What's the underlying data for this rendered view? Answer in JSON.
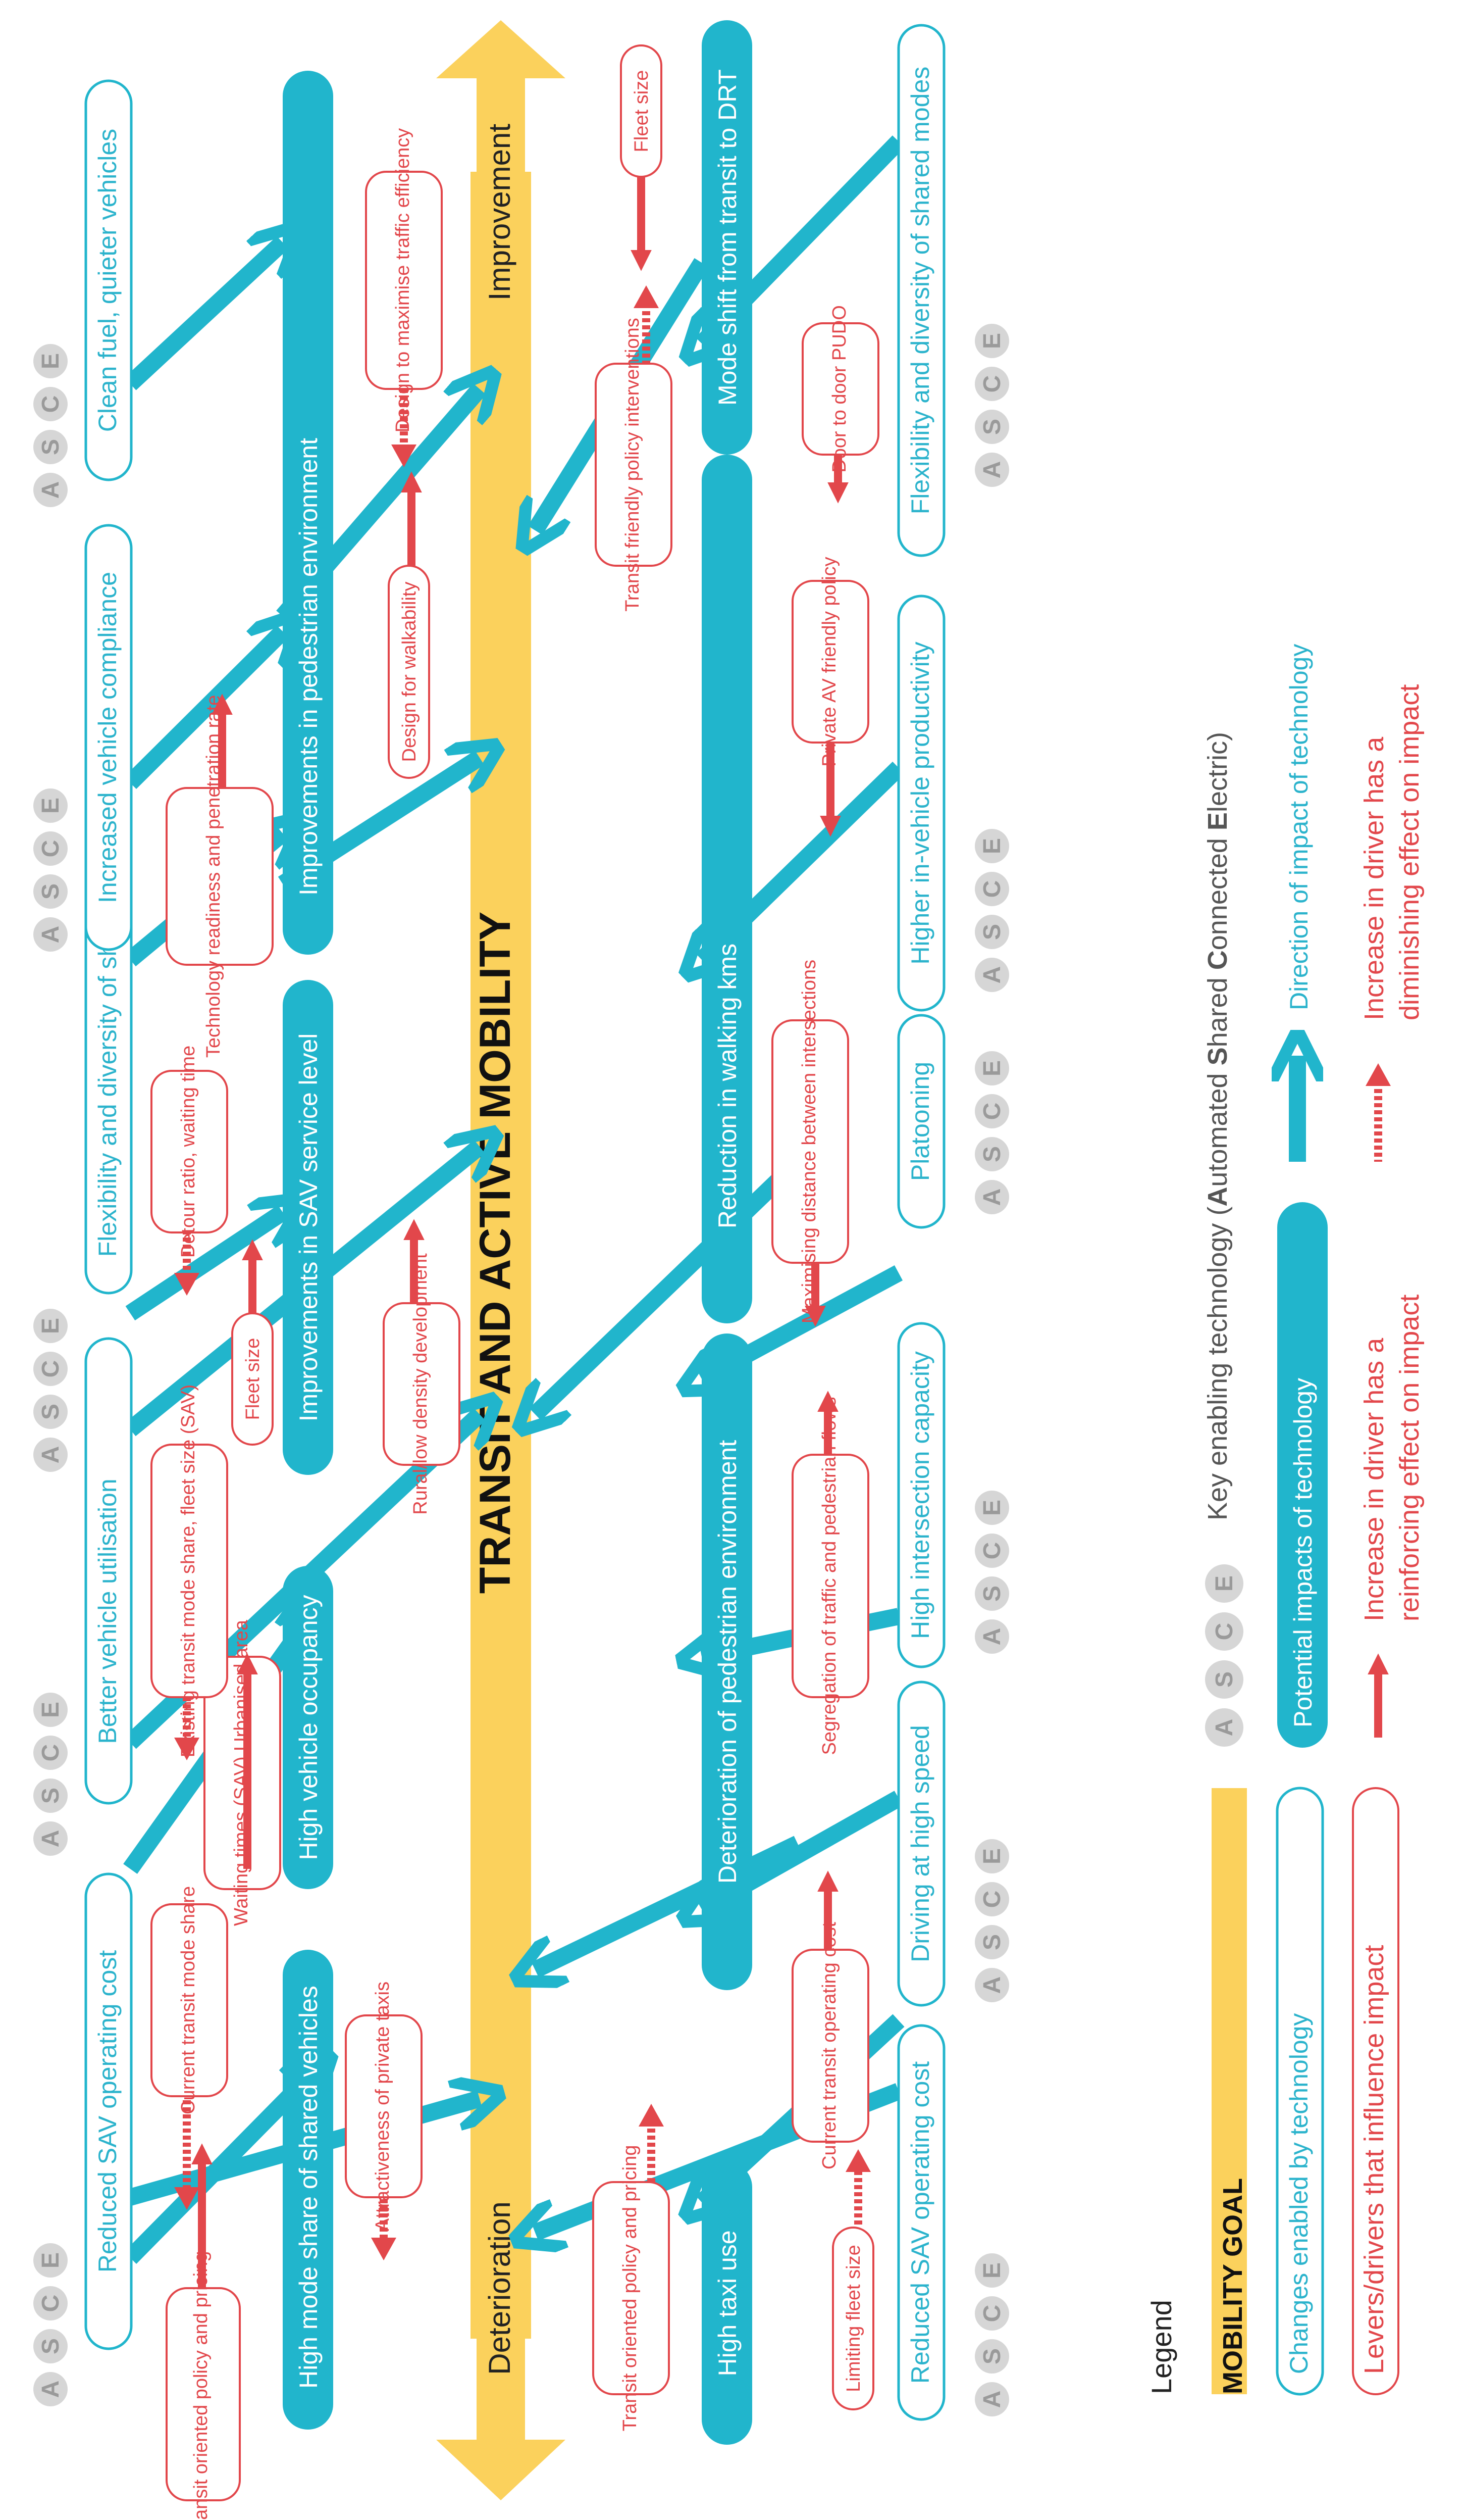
{
  "colors": {
    "teal": "#21b5cc",
    "red": "#e2474b",
    "yellow": "#fbd15c",
    "grey": "#c9c9c9",
    "grey_text": "#9a9a9a"
  },
  "goal": {
    "title": "TRANSIT AND ACTIVE MOBILITY",
    "improvement": "Improvement",
    "deterioration": "Deterioration"
  },
  "tech_letters": [
    "A",
    "S",
    "C",
    "E"
  ],
  "top": {
    "changes": [
      "Reduced SAV operating cost",
      "Better vehicle utilisation",
      "Flexibility and diversity of shared modes",
      "Increased vehicle compliance",
      "Clean fuel, quieter vehicles"
    ],
    "impacts": [
      "High mode share of shared vehicles",
      "High vehicle occupancy",
      "Improvements in SAV service level",
      "Improvements in pedestrian environment"
    ],
    "levers": [
      "Transit oriented policy and pricing",
      "Current transit mode share",
      "Attractiveness of private taxis",
      "Waiting times (SAV) Urbanised area",
      "Existing transit mode share, fleet size (SAV)",
      "Fleet size",
      "Detour ratio, waiting time",
      "Rural/low density development",
      "Technology readiness and penetration rate",
      "Design for walkability",
      "Design to maximise traffic efficiency"
    ]
  },
  "bottom": {
    "changes": [
      "Reduced SAV operating cost",
      "Driving at high speed",
      "High intersection capacity",
      "Platooning",
      "Higher in-vehicle productivity",
      "Flexibility and diversity of shared modes"
    ],
    "impacts": [
      "High taxi use",
      "Deterioration of pedestrian environment",
      "Reduction in walking kms",
      "Mode shift from transit to DRT"
    ],
    "levers": [
      "Transit oriented policy and pricing",
      "Limiting fleet size",
      "Current transit operating cost",
      "Segregation of traffic and pedestrian flows",
      "Maximising distance between intersections",
      "Private AV friendly policy",
      "Door to door PUDO",
      "Transit friendly policy interventions",
      "Fleet size"
    ]
  },
  "legend": {
    "title": "Legend",
    "goal": "MOBILITY GOAL",
    "changes": "Changes enabled by technology",
    "levers": "Levers/drivers that influence impact",
    "impacts": "Potential impacts of technology",
    "tech_prefix": "Key enabling technology (",
    "tech_A": "A",
    "tech_A_rest": "utomated ",
    "tech_S": "S",
    "tech_S_rest": "hared ",
    "tech_C": "C",
    "tech_C_rest": "onnected ",
    "tech_E": "E",
    "tech_E_rest": "lectric)",
    "direction": "Direction of impact of technology",
    "reinforcing_1": "Increase in driver has a",
    "reinforcing_2": "reinforcing effect on impact",
    "diminishing_1": "Increase in driver has a",
    "diminishing_2": "diminishing effect on impact"
  }
}
